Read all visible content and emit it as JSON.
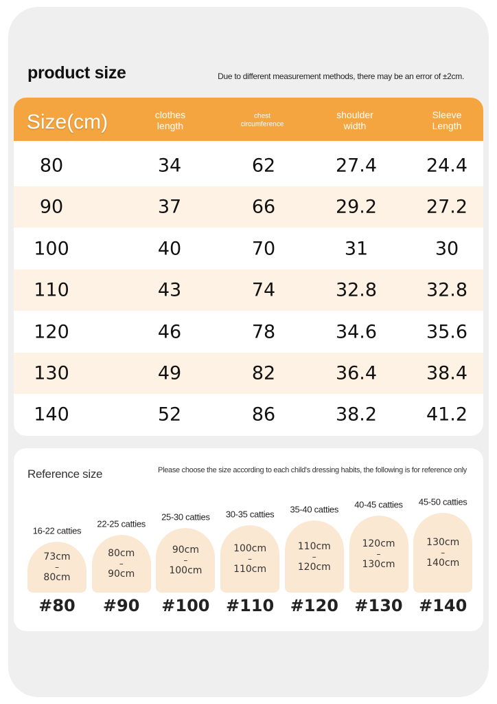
{
  "header": {
    "title": "product size",
    "note": "Due to different measurement methods, there may be an error of ±2cm."
  },
  "table": {
    "columns": [
      "Size(cm)",
      "clothes length",
      "chest circumference",
      "shoulder width",
      "Sleeve Length"
    ],
    "rows": [
      [
        "80",
        "34",
        "62",
        "27.4",
        "24.4"
      ],
      [
        "90",
        "37",
        "66",
        "29.2",
        "27.2"
      ],
      [
        "100",
        "40",
        "70",
        "31",
        "30"
      ],
      [
        "110",
        "43",
        "74",
        "32.8",
        "32.8"
      ],
      [
        "120",
        "46",
        "78",
        "34.6",
        "35.6"
      ],
      [
        "130",
        "49",
        "82",
        "36.4",
        "38.4"
      ],
      [
        "140",
        "52",
        "86",
        "38.2",
        "41.2"
      ]
    ]
  },
  "reference": {
    "title": "Reference size",
    "note": "Please choose the size according to each child's dressing habits, the following is for reference only",
    "separator": "–",
    "items": [
      {
        "weight": "16-22 catties",
        "from": "73cm",
        "to": "80cm",
        "size": "#80"
      },
      {
        "weight": "22-25 catties",
        "from": "80cm",
        "to": "90cm",
        "size": "#90"
      },
      {
        "weight": "25-30 catties",
        "from": "90cm",
        "to": "100cm",
        "size": "#100"
      },
      {
        "weight": "30-35 catties",
        "from": "100cm",
        "to": "110cm",
        "size": "#110"
      },
      {
        "weight": "35-40 catties",
        "from": "110cm",
        "to": "120cm",
        "size": "#120"
      },
      {
        "weight": "40-45 catties",
        "from": "120cm",
        "to": "130cm",
        "size": "#130"
      },
      {
        "weight": "45-50 catties",
        "from": "130cm",
        "to": "140cm",
        "size": "#140"
      }
    ]
  }
}
